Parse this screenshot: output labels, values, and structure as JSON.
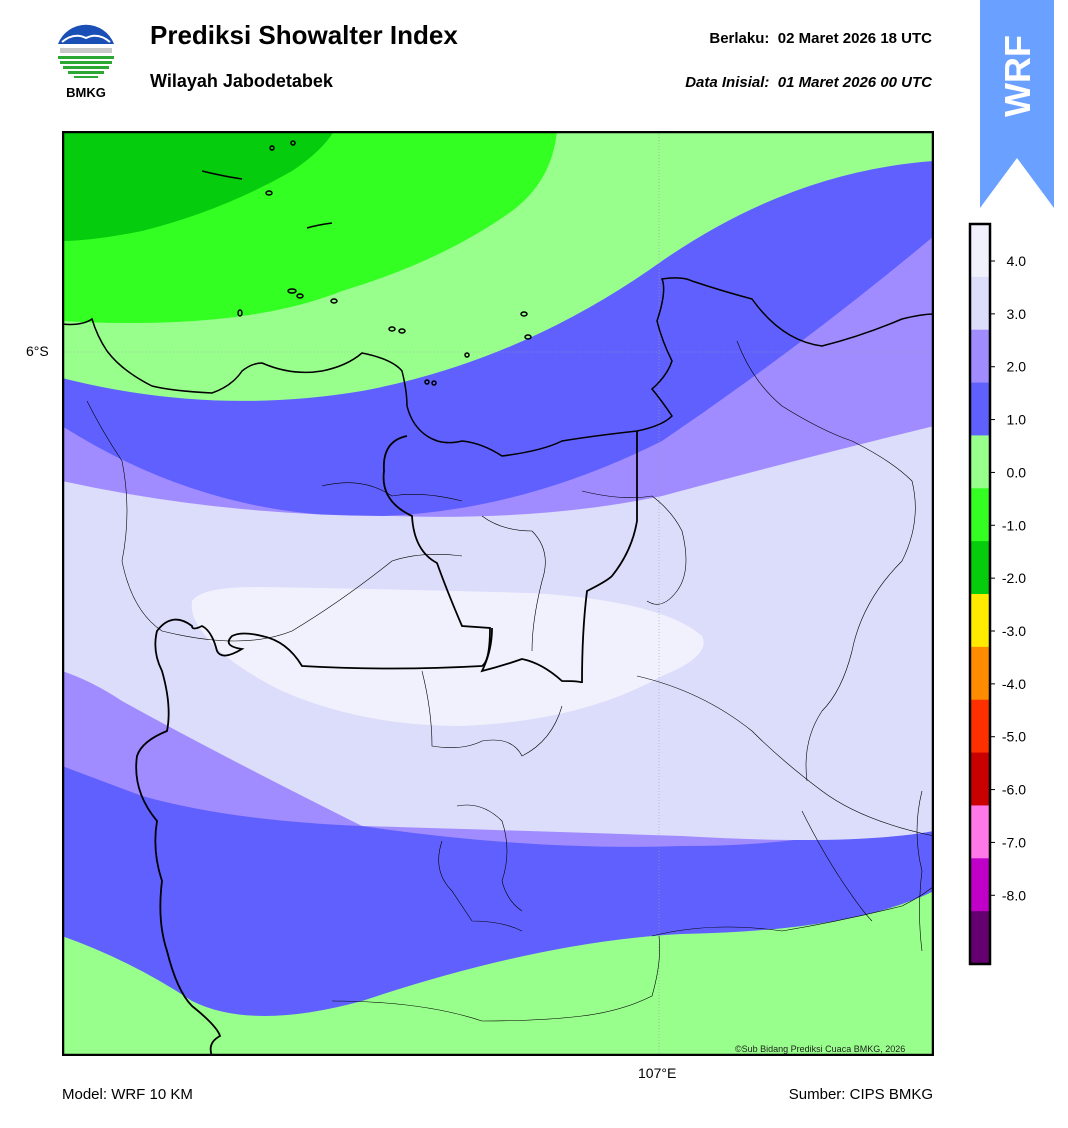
{
  "header": {
    "title": "Prediksi Showalter Index",
    "subtitle": "Wilayah Jabodetabek",
    "valid_label": "Berlaku:",
    "valid_time": "02 Maret 2026 18 UTC",
    "init_label": "Data Inisial:",
    "init_time": "01 Maret 2026 00 UTC"
  },
  "logo": {
    "text": "BMKG",
    "icon": "bmkg-logo-icon"
  },
  "badge": {
    "text": "WRF",
    "color": "#6aa0ff",
    "icon": "up-arrow-badge-icon"
  },
  "map": {
    "lat_label": "6°S",
    "lon_label": "107°E",
    "copyright": "©Sub Bidang Prediksi Cuaca BMKG, 2026"
  },
  "footer": {
    "model": "Model: WRF 10 KM",
    "source": "Sumber: CIPS BMKG"
  },
  "colorbar": {
    "ticks": [
      "4.0",
      "3.0",
      "2.0",
      "1.0",
      "0.0",
      "-1.0",
      "-2.0",
      "-3.0",
      "-4.0",
      "-5.0",
      "-6.0",
      "-7.0",
      "-8.0"
    ],
    "colors": [
      "#f1f1fd",
      "#dcdcfb",
      "#a08cff",
      "#6060ff",
      "#99ff8c",
      "#33ff22",
      "#05cc0c",
      "#ffea00",
      "#ff8c00",
      "#ff3000",
      "#c80000",
      "#ff78e8",
      "#c000c8",
      "#650070"
    ]
  }
}
